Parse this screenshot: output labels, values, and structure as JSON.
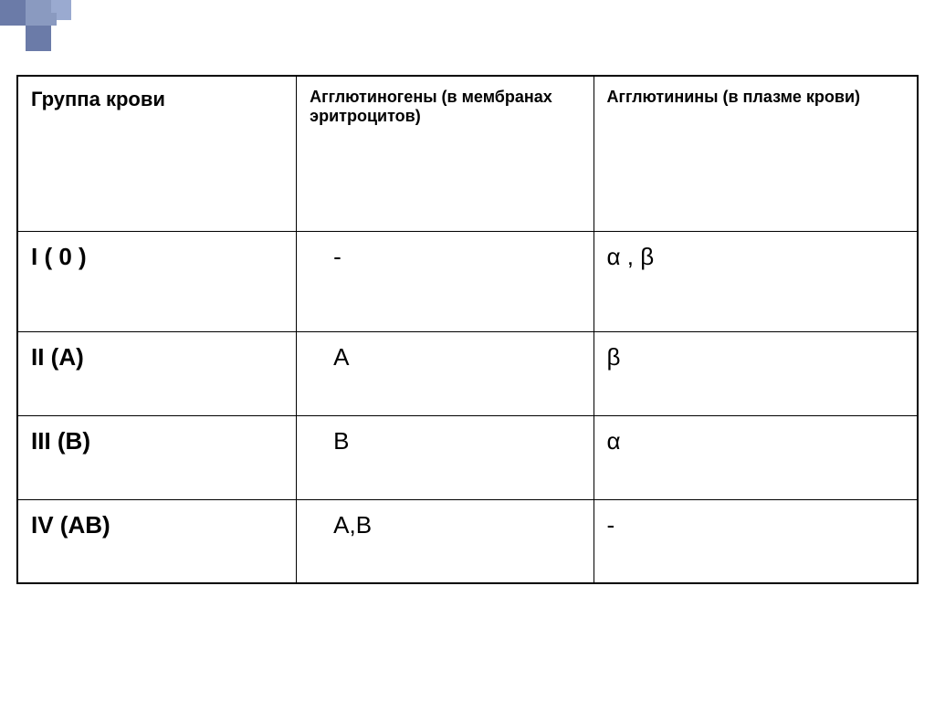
{
  "decoration": {
    "colors": {
      "dark": "#6b7ba8",
      "medium": "#8a9ac0",
      "light": "#9aaad0"
    }
  },
  "table": {
    "type": "table",
    "border_color": "#000000",
    "background_color": "#ffffff",
    "header_fontsize": 22,
    "header_small_fontsize": 18,
    "cell_fontsize": 26,
    "text_color": "#000000",
    "columns": [
      {
        "label": "Группа крови",
        "width_pct": 31
      },
      {
        "label": "Агглютиногены (в мембранах эритроцитов)",
        "width_pct": 33
      },
      {
        "label": "Агглютинины (в плазме крови)",
        "width_pct": 36
      }
    ],
    "rows": [
      {
        "group": "I ( 0 )",
        "agglutinogens": "-",
        "agglutinins": "α , β"
      },
      {
        "group": "II (А)",
        "agglutinogens": "А",
        "agglutinins": "β"
      },
      {
        "group": "III (В)",
        "agglutinogens": "В",
        "agglutinins": "α"
      },
      {
        "group": "IV (АВ)",
        "agglutinogens": "А,В",
        "agglutinins": "  -"
      }
    ]
  }
}
